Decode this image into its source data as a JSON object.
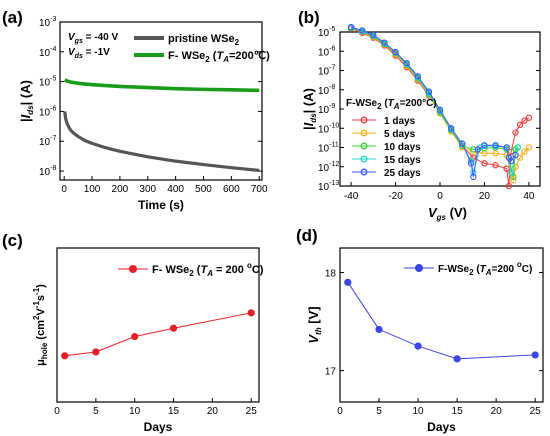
{
  "figure": {
    "panels": [
      "(a)",
      "(b)",
      "(c)",
      "(d)"
    ]
  },
  "colors": {
    "axis": "#000000",
    "pristine": "#555555",
    "fluorinated": "#1a9c1a",
    "day1": "#ff3b3b",
    "day5": "#ffae1a",
    "day10": "#36d236",
    "day15": "#22d7c8",
    "day25": "#3b5bff",
    "panel_c": "#ee1c24",
    "panel_d": "#3a46e6"
  },
  "chart_data": [
    {
      "id": "a",
      "panel_label": "(a)",
      "type": "line",
      "xlabel": "Time (s)",
      "ylabel_parts": [
        "|",
        "I",
        "ds",
        "| (A)"
      ],
      "xlim": [
        -15,
        710
      ],
      "ylim_log10": [
        -8.3,
        -3
      ],
      "xticks": [
        "0",
        "100",
        "200",
        "300",
        "400",
        "500",
        "600",
        "700"
      ],
      "yticks": [
        "10",
        "10",
        "10",
        "10",
        "10",
        "10"
      ],
      "ytick_exponents": [
        "-3",
        "-4",
        "-5",
        "-6",
        "-7",
        "-8"
      ],
      "annotations": {
        "vgs_name": "V",
        "vgs_sub": "gs",
        "vgs_value": " = -40 V",
        "vds_name": "V",
        "vds_sub": "ds",
        "vds_value": " = -1V"
      },
      "legend_position": "top-right",
      "series": [
        {
          "name": "pristine WSe₂",
          "label_parts": [
            "pristine WSe",
            "2"
          ],
          "color": "#555555",
          "x": [
            2,
            5,
            10,
            20,
            30,
            50,
            75,
            100,
            150,
            200,
            300,
            400,
            500,
            600,
            700
          ],
          "y": [
            1e-06,
            6e-07,
            4e-07,
            2.6e-07,
            2e-07,
            1.45e-07,
            1.05e-07,
            8.5e-08,
            6e-08,
            4.6e-08,
            3e-08,
            2.15e-08,
            1.65e-08,
            1.3e-08,
            1.05e-08
          ]
        },
        {
          "name": "F- WSe₂ (T_A=200℃)",
          "label_parts": [
            "F- WSe",
            "2",
            " (",
            "T",
            "A",
            "=200℃)"
          ],
          "color": "#1a9c1a",
          "x": [
            2,
            10,
            20,
            50,
            100,
            200,
            300,
            400,
            500,
            600,
            700
          ],
          "y": [
            1.15e-05,
            1.05e-05,
            9.8e-06,
            8.8e-06,
            7.9e-06,
            6.9e-06,
            6.3e-06,
            5.8e-06,
            5.5e-06,
            5.3e-06,
            5.1e-06
          ]
        }
      ]
    },
    {
      "id": "b",
      "panel_label": "(b)",
      "type": "scatter",
      "xlabel_parts": [
        "V",
        "gs",
        " (V)"
      ],
      "ylabel_parts": [
        "|",
        "I",
        "ds",
        "| (A)"
      ],
      "xlim": [
        -45,
        45
      ],
      "ylim_log10": [
        -13,
        -5
      ],
      "xticks": [
        "-40",
        "-20",
        "0",
        "20",
        "40"
      ],
      "yticks": [
        "10",
        "10",
        "10",
        "10",
        "10",
        "10",
        "10",
        "10",
        "10"
      ],
      "ytick_exponents": [
        "-5",
        "-6",
        "-7",
        "-8",
        "-9",
        "-10",
        "-11",
        "-12",
        "-13"
      ],
      "legend_title_parts": [
        "F-WSe",
        "2",
        " (",
        "T",
        "A",
        "=200°C)"
      ],
      "legend_position": "center-left",
      "series": [
        {
          "name": "1 days",
          "color": "#ff3b3b",
          "x": [
            -40,
            -35,
            -30,
            -25,
            -20,
            -15,
            -10,
            -5,
            0,
            5,
            10,
            15,
            20,
            25,
            30,
            31,
            32,
            34,
            36,
            38,
            40
          ],
          "y": [
            1.5e-05,
            9e-06,
            5e-06,
            2e-06,
            6e-07,
            1.5e-07,
            3e-08,
            5e-09,
            6e-10,
            8e-11,
            1.2e-11,
            3e-12,
            1.5e-12,
            1.2e-12,
            8e-13,
            1e-13,
            6e-12,
            6e-11,
            1.5e-10,
            2.5e-10,
            3.5e-10
          ]
        },
        {
          "name": "5 days",
          "color": "#ffae1a",
          "x": [
            -40,
            -35,
            -30,
            -25,
            -20,
            -15,
            -10,
            -5,
            0,
            5,
            10,
            15,
            20,
            25,
            30,
            33,
            34,
            36,
            38,
            40
          ],
          "y": [
            1.6e-05,
            1e-05,
            5.5e-06,
            2.2e-06,
            7e-07,
            1.7e-07,
            3.5e-08,
            5.5e-09,
            6e-10,
            7e-11,
            1e-11,
            6e-12,
            5e-12,
            5e-12,
            4e-12,
            2e-13,
            1e-12,
            3e-12,
            6e-12,
            1e-11
          ]
        },
        {
          "name": "10 days",
          "color": "#36d236",
          "x": [
            -40,
            -35,
            -30,
            -25,
            -20,
            -15,
            -10,
            -5,
            0,
            5,
            10,
            15,
            20,
            25,
            30,
            33,
            34,
            35
          ],
          "y": [
            1.6e-05,
            1.05e-05,
            6e-06,
            2.4e-06,
            8e-07,
            2e-07,
            4e-08,
            6e-09,
            7e-10,
            8e-11,
            1.2e-11,
            8e-12,
            9e-12,
            1e-11,
            8e-12,
            3e-13,
            8e-12,
            1e-11
          ]
        },
        {
          "name": "15 days",
          "color": "#22d7c8",
          "x": [
            -40,
            -35,
            -30,
            -25,
            -20,
            -15,
            -10,
            -5,
            0,
            5,
            10,
            14,
            15,
            18,
            20,
            25,
            30,
            32,
            35
          ],
          "y": [
            1.7e-05,
            1.1e-05,
            6.5e-06,
            2.6e-06,
            8.5e-07,
            2.2e-07,
            4.5e-08,
            7e-09,
            8e-10,
            9e-11,
            1.5e-11,
            2e-12,
            5e-13,
            1e-11,
            1.2e-11,
            1.2e-11,
            1e-11,
            5e-13,
            1e-11
          ]
        },
        {
          "name": "25 days",
          "color": "#3b5bff",
          "x": [
            -40,
            -35,
            -30,
            -25,
            -20,
            -15,
            -10,
            -5,
            0,
            5,
            10,
            14,
            15,
            17,
            20,
            25,
            30,
            31,
            32,
            34
          ],
          "y": [
            1.8e-05,
            1.2e-05,
            7e-06,
            2.8e-06,
            9e-07,
            2.4e-07,
            5e-08,
            8e-09,
            9e-10,
            1e-10,
            1.6e-11,
            1.5e-12,
            3e-13,
            8e-12,
            1.3e-11,
            1.3e-11,
            1e-11,
            3e-12,
            2e-12,
            4e-12
          ]
        }
      ]
    },
    {
      "id": "c",
      "panel_label": "(c)",
      "type": "line",
      "xlabel": "Days",
      "ylabel_parts": [
        "μ",
        "hole",
        " (cm",
        "2",
        "V",
        "-1",
        "s",
        "-1",
        ")"
      ],
      "xlim": [
        0,
        26
      ],
      "ylim": [
        26,
        50
      ],
      "xticks": [
        "0",
        "5",
        "10",
        "15",
        "20",
        "25"
      ],
      "yticks": [],
      "legend_position": "top-right",
      "series": [
        {
          "name": "F- WSe₂ (T_A = 200 °C)",
          "label_parts": [
            "F- WSe",
            "2",
            " (",
            "T",
            "A",
            " = 200 ",
            "o",
            "C)"
          ],
          "color": "#ee1c24",
          "x": [
            1,
            5,
            10,
            15,
            25
          ],
          "y": [
            33.2,
            33.8,
            36.2,
            37.5,
            39.9
          ]
        }
      ]
    },
    {
      "id": "d",
      "panel_label": "(d)",
      "type": "line",
      "xlabel": "Days",
      "ylabel_parts": [
        "V",
        "th",
        " [V]"
      ],
      "xlim": [
        0,
        26
      ],
      "ylim": [
        16.68,
        18.25
      ],
      "xticks": [
        "0",
        "5",
        "10",
        "15",
        "20",
        "25"
      ],
      "yticks": [
        "17",
        "18"
      ],
      "legend_position": "top-right",
      "series": [
        {
          "name": "F-WSe₂ (T_A=200 °C)",
          "label_parts": [
            "F-WSe",
            "2",
            " (",
            "T",
            "A",
            "=200 ",
            "o",
            "C)"
          ],
          "color": "#3a46e6",
          "x": [
            1,
            5,
            10,
            15,
            25
          ],
          "y": [
            17.9,
            17.42,
            17.25,
            17.12,
            17.16
          ]
        }
      ]
    }
  ]
}
